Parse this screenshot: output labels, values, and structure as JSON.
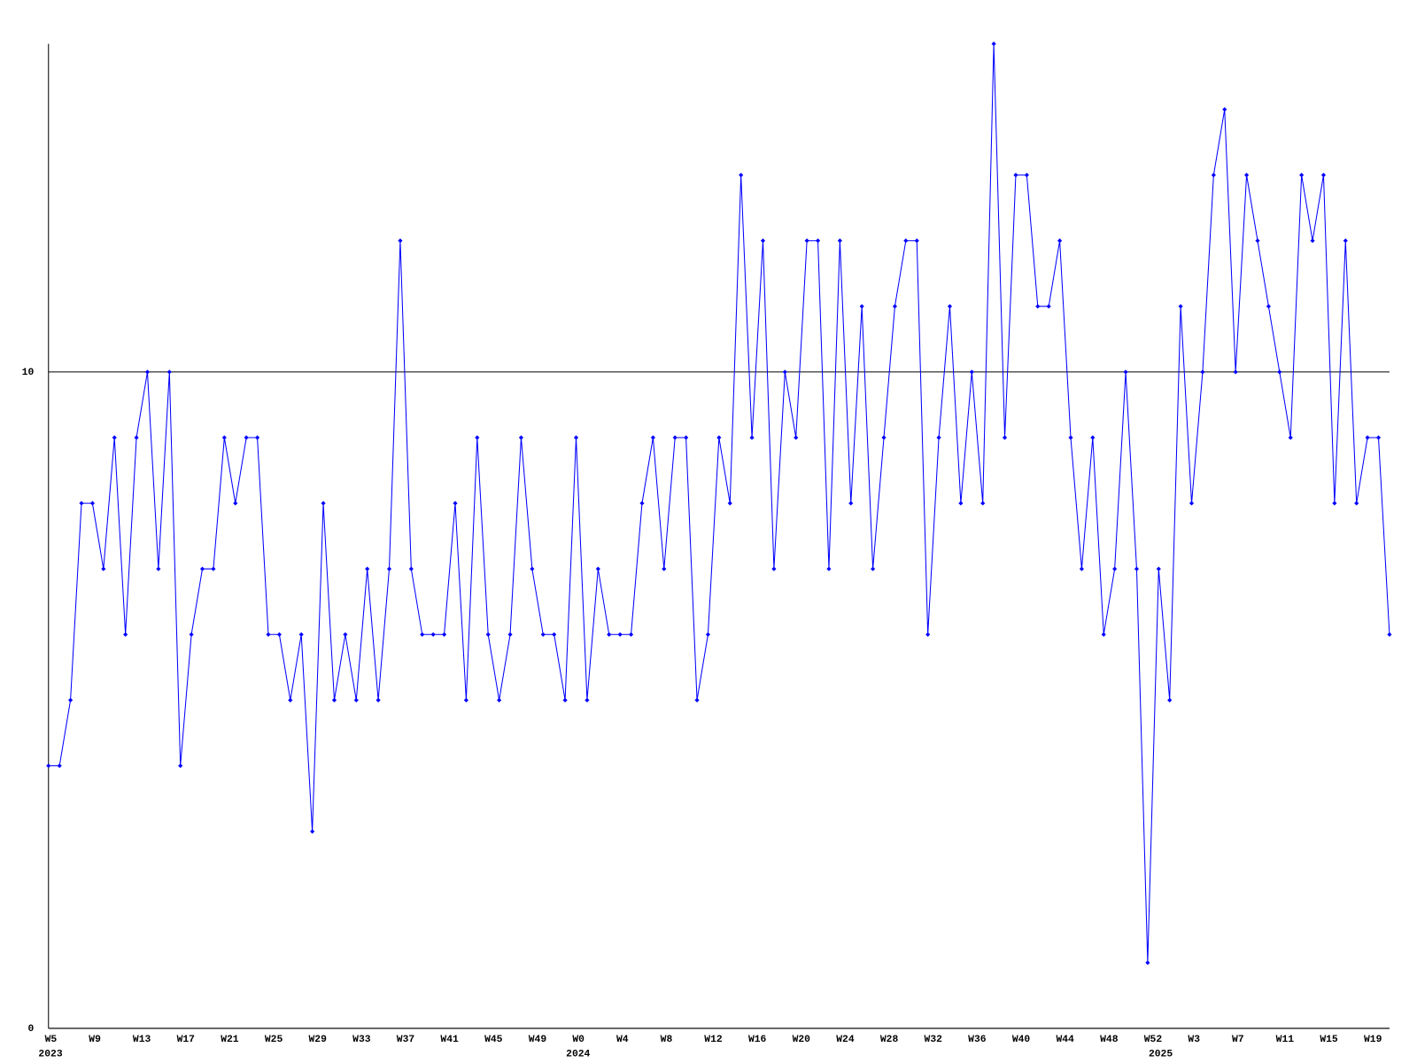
{
  "chart_data": {
    "type": "line",
    "categories": [
      "W5",
      null,
      null,
      null,
      "W9",
      null,
      null,
      null,
      "W13",
      null,
      null,
      null,
      "W17",
      null,
      null,
      null,
      "W21",
      null,
      null,
      null,
      "W25",
      null,
      null,
      null,
      "W29",
      null,
      null,
      null,
      "W33",
      null,
      null,
      null,
      "W37",
      null,
      null,
      null,
      "W41",
      null,
      null,
      null,
      "W45",
      null,
      null,
      null,
      "W49",
      null,
      null,
      null,
      "W0",
      null,
      null,
      null,
      "W4",
      null,
      null,
      null,
      "W8",
      null,
      null,
      null,
      "W12",
      null,
      null,
      null,
      "W16",
      null,
      null,
      null,
      "W20",
      null,
      null,
      null,
      "W24",
      null,
      null,
      null,
      "W28",
      null,
      null,
      null,
      "W32",
      null,
      null,
      null,
      "W36",
      null,
      null,
      null,
      "W40",
      null,
      null,
      null,
      "W44",
      null,
      null,
      null,
      "W48",
      null,
      null,
      null,
      "W52",
      null,
      null,
      null,
      "W3",
      null,
      null,
      null,
      "W7",
      null,
      null,
      null,
      "W11",
      null,
      null,
      null,
      "W15",
      null,
      null,
      null,
      "W19",
      null,
      null
    ],
    "year_labels": [
      "2023",
      null,
      null,
      null,
      null,
      null,
      null,
      null,
      null,
      null,
      null,
      null,
      null,
      null,
      null,
      null,
      null,
      null,
      null,
      null,
      null,
      null,
      null,
      null,
      null,
      null,
      null,
      null,
      null,
      null,
      null,
      null,
      null,
      null,
      null,
      null,
      null,
      null,
      null,
      null,
      null,
      null,
      null,
      null,
      null,
      null,
      null,
      null,
      "2024",
      null,
      null,
      null,
      null,
      null,
      null,
      null,
      null,
      null,
      null,
      null,
      null,
      null,
      null,
      null,
      null,
      null,
      null,
      null,
      null,
      null,
      null,
      null,
      null,
      null,
      null,
      null,
      null,
      null,
      null,
      null,
      null,
      null,
      null,
      null,
      null,
      null,
      null,
      null,
      null,
      null,
      null,
      null,
      null,
      null,
      null,
      null,
      null,
      null,
      null,
      null,
      null,
      "2025",
      null,
      null,
      null,
      null,
      null,
      null,
      null,
      null,
      null,
      null,
      null,
      null,
      null,
      null,
      null,
      null,
      null,
      null,
      null,
      null,
      null
    ],
    "series": [
      {
        "color": "#0000ff",
        "values": [
          4,
          4,
          5,
          8,
          8,
          7,
          9,
          6,
          9,
          10,
          7,
          10,
          4,
          6,
          7,
          7,
          9,
          8,
          9,
          9,
          6,
          6,
          5,
          6,
          3,
          8,
          5,
          6,
          5,
          7,
          5,
          7,
          12,
          7,
          6,
          6,
          6,
          8,
          5,
          9,
          6,
          5,
          6,
          9,
          7,
          6,
          6,
          5,
          9,
          5,
          7,
          6,
          6,
          6,
          8,
          9,
          7,
          9,
          9,
          5,
          6,
          9,
          8,
          13,
          9,
          12,
          7,
          10,
          9,
          12,
          12,
          7,
          12,
          8,
          11,
          7,
          9,
          11,
          12,
          12,
          6,
          9,
          11,
          8,
          10,
          8,
          15,
          9,
          13,
          13,
          11,
          11,
          12,
          9,
          7,
          9,
          6,
          7,
          10,
          7,
          1,
          7,
          5,
          11,
          8,
          10,
          13,
          14,
          10,
          13,
          12,
          11,
          10,
          9,
          13,
          12,
          13,
          8,
          12,
          8,
          9,
          9,
          6
        ]
      }
    ],
    "ylim": [
      0,
      15
    ],
    "yticks": [
      0,
      10
    ],
    "grid": true
  }
}
